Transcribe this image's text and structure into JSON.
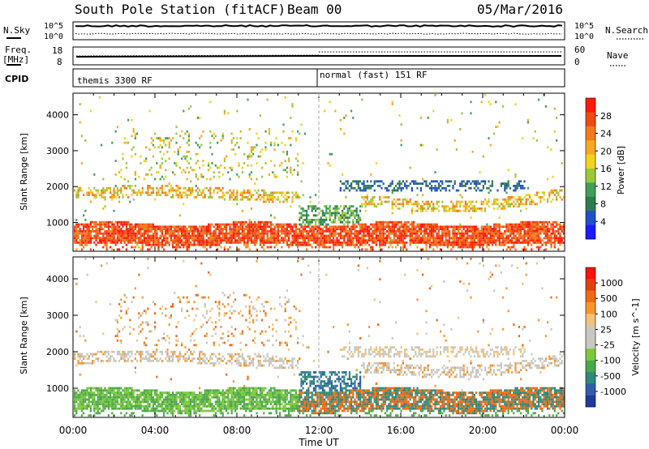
{
  "header": {
    "title": "South Pole Station (fitACF)",
    "beam": "Beam 00",
    "date": "05/Mar/2016"
  },
  "top_panels": {
    "nsky_label": "N.Sky",
    "nsky_ticks": [
      "10^5",
      "10^0"
    ],
    "nsearch_label": "N.Search",
    "freq_label_1": "Freq.",
    "freq_label_2": "[MHz]",
    "freq_ticks": [
      "18",
      "8"
    ],
    "nave_label": "Nave",
    "nave_ticks": [
      "60",
      "0"
    ],
    "cpid_label": "CPID",
    "cpid_segments": [
      {
        "label": "themis 3300 RF",
        "start_hour": 0
      },
      {
        "label": "normal (fast) 151 RF",
        "start_hour": 12
      }
    ]
  },
  "chart_data": [
    {
      "type": "heatmap",
      "name": "power",
      "ylabel": "Slant Range [km]",
      "yticks": [
        1000,
        2000,
        3000,
        4000
      ],
      "ylim": [
        200,
        4600
      ],
      "xlim": [
        0,
        24
      ],
      "colorbar_label": "Power [dB]",
      "colorbar_ticks": [
        "4",
        "8",
        "12",
        "16",
        "20",
        "24",
        "28"
      ],
      "colors": [
        "#1a1aff",
        "#2050c8",
        "#2f7a4f",
        "#3f9f5a",
        "#9ac83a",
        "#f2d21a",
        "#f8a820",
        "#f47a1a",
        "#ee4a16",
        "#ff1a0a"
      ]
    },
    {
      "type": "heatmap",
      "name": "velocity",
      "ylabel": "Slant Range [km]",
      "yticks": [
        1000,
        2000,
        3000,
        4000
      ],
      "ylim": [
        200,
        4600
      ],
      "xlim": [
        0,
        24
      ],
      "xticks": [
        "00:00",
        "04:00",
        "08:00",
        "12:00",
        "16:00",
        "20:00",
        "00:00"
      ],
      "xlabel": "Time UT",
      "colorbar_label": "Velocity [m s^-1]",
      "colorbar_ticks": [
        "1000",
        "500",
        "100",
        "25",
        "-25",
        "-100",
        "-500",
        "-1000"
      ],
      "colors": [
        "#1e3a9a",
        "#2f5fa8",
        "#2e8a78",
        "#4aa84a",
        "#7cc83a",
        "#c8c8c0",
        "#c8c8c0",
        "#f2c27a",
        "#f8962a",
        "#f06a14",
        "#e04010",
        "#ff1010"
      ]
    }
  ]
}
